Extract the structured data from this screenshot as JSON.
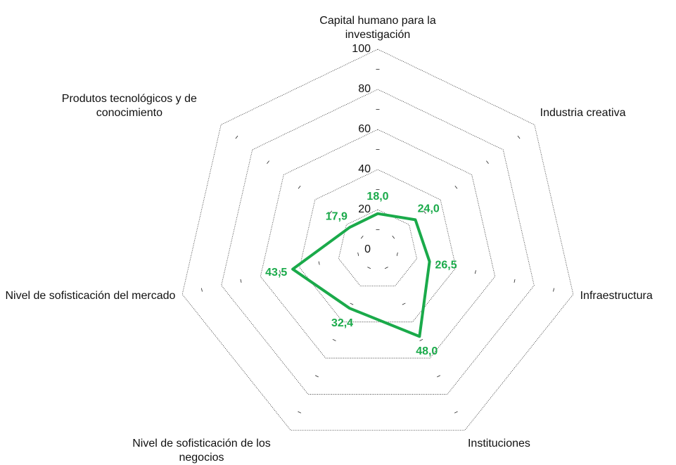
{
  "chart_data": {
    "type": "radar",
    "categories": [
      "Capital humano para la investigación",
      "Industria creativa",
      "Infraestructura",
      "Instituciones",
      "Nivel de sofisticación de los negocios",
      "Nivel de sofisticación del mercado",
      "Produtos tecnológicos y de conocimiento"
    ],
    "series": [
      {
        "color": "#1aaa4a",
        "values": [
          18.0,
          24.0,
          26.5,
          48.0,
          32.4,
          43.5,
          17.9
        ],
        "value_labels": [
          "18,0",
          "24,0",
          "26,5",
          "48,0",
          "32,4",
          "43,5",
          "17,9"
        ]
      }
    ],
    "ylim": [
      0,
      100
    ],
    "yticks": [
      0,
      20,
      40,
      60,
      80,
      100
    ],
    "grid": true
  }
}
